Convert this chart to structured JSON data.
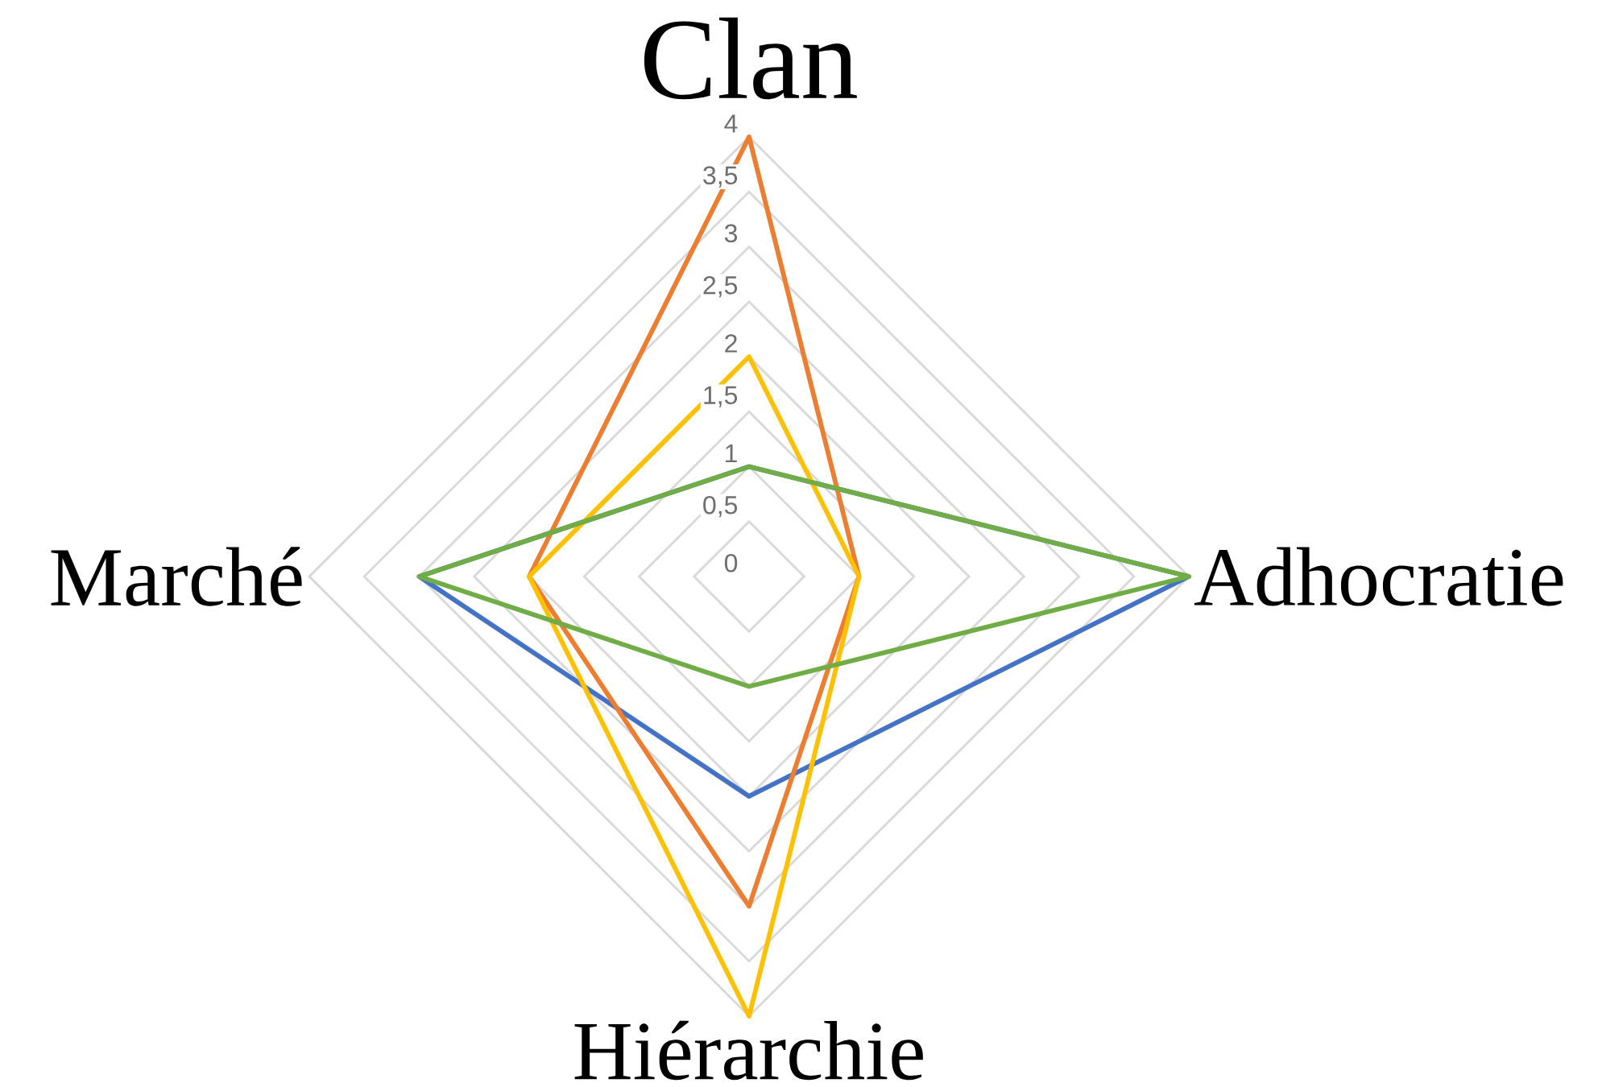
{
  "chart_data": {
    "type": "radar",
    "categories": [
      "Clan",
      "Adhocratie",
      "Hiérarchie",
      "Marché"
    ],
    "series": [
      {
        "color": "#4472c4",
        "values": [
          1,
          4,
          2,
          3
        ]
      },
      {
        "color": "#ed7d31",
        "values": [
          4,
          1,
          3,
          2
        ]
      },
      {
        "color": "#ffc000",
        "values": [
          2,
          1,
          4,
          2
        ]
      },
      {
        "color": "#70ad47",
        "values": [
          1,
          4,
          1,
          3
        ]
      }
    ],
    "ylim": [
      0,
      4
    ],
    "yticks": [
      0,
      {
        "value": 0.5,
        "label": "0,5"
      },
      1,
      {
        "value": 1.5,
        "label": "1,5"
      },
      2,
      {
        "value": 2.5,
        "label": "2,5"
      },
      3,
      {
        "value": 3.5,
        "label": "3,5"
      },
      4
    ],
    "grid": true
  }
}
